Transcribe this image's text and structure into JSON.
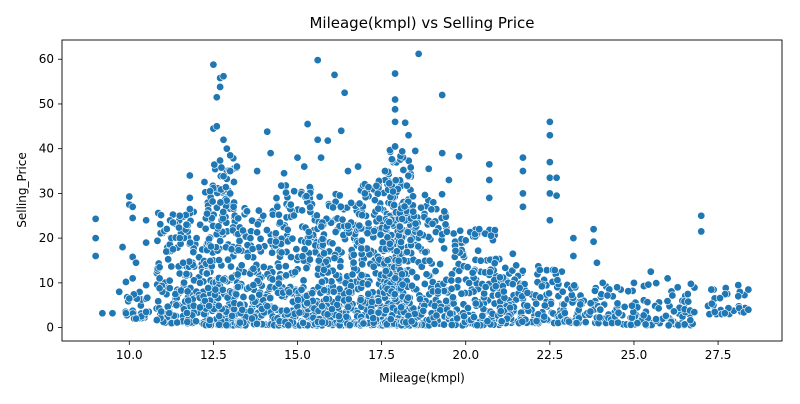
{
  "chart_data": {
    "type": "scatter",
    "title": "Mileage(kmpl) vs Selling Price",
    "xlabel": "Mileage(kmpl)",
    "ylabel": "Selling_Price",
    "xlim": [
      8.0,
      29.4
    ],
    "ylim": [
      -3.0,
      64.3
    ],
    "xticks": [
      10.0,
      12.5,
      15.0,
      17.5,
      20.0,
      22.5,
      25.0,
      27.5
    ],
    "yticks": [
      0,
      10,
      20,
      30,
      40,
      50,
      60
    ],
    "grid": false,
    "legend": "none",
    "marker_color": "#1f77b4",
    "marker_edge": "#ffffff",
    "points": [
      [
        9.0,
        24.3
      ],
      [
        9.0,
        20.0
      ],
      [
        9.0,
        16.0
      ],
      [
        9.2,
        3.2
      ],
      [
        9.5,
        3.2
      ],
      [
        9.7,
        8.0
      ],
      [
        9.8,
        18.0
      ],
      [
        9.9,
        10.2
      ],
      [
        9.9,
        3.2
      ],
      [
        10.0,
        29.3
      ],
      [
        10.0,
        27.5
      ],
      [
        10.0,
        6.5
      ],
      [
        10.1,
        15.8
      ],
      [
        10.1,
        11.0
      ],
      [
        10.1,
        27.0
      ],
      [
        10.1,
        24.5
      ],
      [
        10.2,
        14.5
      ],
      [
        10.2,
        2.0
      ],
      [
        10.5,
        24.0
      ],
      [
        10.5,
        19.0
      ],
      [
        10.5,
        9.5
      ],
      [
        10.5,
        3.5
      ],
      [
        10.9,
        8.8
      ],
      [
        10.9,
        11.0
      ],
      [
        10.9,
        13.5
      ],
      [
        11.1,
        17.0
      ],
      [
        11.2,
        10.5
      ],
      [
        11.3,
        17.5
      ],
      [
        11.3,
        23.5
      ],
      [
        11.4,
        5.0
      ],
      [
        11.5,
        25.0
      ],
      [
        11.5,
        20.0
      ],
      [
        11.6,
        14.5
      ],
      [
        11.7,
        12.0
      ],
      [
        11.7,
        23.0
      ],
      [
        11.8,
        29.0
      ],
      [
        11.8,
        34.0
      ],
      [
        11.8,
        26.5
      ],
      [
        12.0,
        20.0
      ],
      [
        12.1,
        10.0
      ],
      [
        12.1,
        4.5
      ],
      [
        12.4,
        30.5
      ],
      [
        12.5,
        44.5
      ],
      [
        12.5,
        58.8
      ],
      [
        12.6,
        51.5
      ],
      [
        12.6,
        45.0
      ],
      [
        12.7,
        55.8
      ],
      [
        12.7,
        53.8
      ],
      [
        12.8,
        56.2
      ],
      [
        12.8,
        42.0
      ],
      [
        12.9,
        40.0
      ],
      [
        13.0,
        35.0
      ],
      [
        13.0,
        38.5
      ],
      [
        13.0,
        30.0
      ],
      [
        13.1,
        27.0
      ],
      [
        13.2,
        36.0
      ],
      [
        13.5,
        26.0
      ],
      [
        13.6,
        20.0
      ],
      [
        13.8,
        35.0
      ],
      [
        14.1,
        43.8
      ],
      [
        14.2,
        39.0
      ],
      [
        14.4,
        27.0
      ],
      [
        14.6,
        34.5
      ],
      [
        14.8,
        27.5
      ],
      [
        14.9,
        30.5
      ],
      [
        15.0,
        38.0
      ],
      [
        15.2,
        36.0
      ],
      [
        15.3,
        45.5
      ],
      [
        15.6,
        59.8
      ],
      [
        15.7,
        38.0
      ],
      [
        15.6,
        42.0
      ],
      [
        15.9,
        41.8
      ],
      [
        16.1,
        56.5
      ],
      [
        16.4,
        52.5
      ],
      [
        16.3,
        44.0
      ],
      [
        16.5,
        35.0
      ],
      [
        16.8,
        36.0
      ],
      [
        17.0,
        30.0
      ],
      [
        17.3,
        28.5
      ],
      [
        17.6,
        35.0
      ],
      [
        17.9,
        56.8
      ],
      [
        17.9,
        51.0
      ],
      [
        17.9,
        48.8
      ],
      [
        17.9,
        46.0
      ],
      [
        17.9,
        40.5
      ],
      [
        18.2,
        45.8
      ],
      [
        18.3,
        43.0
      ],
      [
        18.5,
        39.5
      ],
      [
        18.6,
        61.2
      ],
      [
        18.9,
        35.5
      ],
      [
        19.3,
        52.0
      ],
      [
        19.3,
        39.0
      ],
      [
        19.5,
        33.0
      ],
      [
        19.8,
        38.3
      ],
      [
        20.0,
        19.5
      ],
      [
        20.4,
        22.0
      ],
      [
        20.7,
        36.5
      ],
      [
        20.7,
        33.0
      ],
      [
        20.7,
        29.0
      ],
      [
        21.4,
        16.5
      ],
      [
        21.7,
        38.0
      ],
      [
        21.7,
        35.0
      ],
      [
        21.7,
        30.0
      ],
      [
        21.7,
        27.0
      ],
      [
        22.5,
        46.0
      ],
      [
        22.5,
        43.0
      ],
      [
        22.5,
        37.0
      ],
      [
        22.5,
        33.5
      ],
      [
        22.5,
        30.0
      ],
      [
        22.7,
        33.5
      ],
      [
        22.7,
        29.5
      ],
      [
        22.5,
        24.0
      ],
      [
        23.2,
        20.0
      ],
      [
        23.2,
        16.0
      ],
      [
        23.8,
        22.0
      ],
      [
        23.8,
        19.2
      ],
      [
        23.9,
        14.5
      ],
      [
        24.0,
        4.0
      ],
      [
        24.5,
        9.0
      ],
      [
        25.0,
        10.0
      ],
      [
        25.5,
        12.5
      ],
      [
        26.0,
        11.0
      ],
      [
        26.3,
        9.0
      ],
      [
        26.6,
        7.5
      ],
      [
        27.0,
        25.0
      ],
      [
        27.0,
        21.5
      ],
      [
        27.3,
        8.5
      ],
      [
        27.4,
        3.5
      ],
      [
        27.7,
        3.2
      ],
      [
        28.1,
        9.5
      ],
      [
        28.1,
        7.0
      ],
      [
        28.4,
        8.5
      ],
      [
        28.4,
        4.0
      ]
    ],
    "clusters": [
      {
        "x": [
          9.8,
          10.6
        ],
        "y": [
          2.0,
          8.0
        ],
        "n": 30
      },
      {
        "x": [
          10.8,
          12.2
        ],
        "y": [
          1.0,
          26.0
        ],
        "n": 160
      },
      {
        "x": [
          12.2,
          13.2
        ],
        "y": [
          0.5,
          38.0
        ],
        "n": 240
      },
      {
        "x": [
          13.2,
          14.3
        ],
        "y": [
          0.5,
          28.0
        ],
        "n": 150
      },
      {
        "x": [
          14.3,
          15.6
        ],
        "y": [
          0.5,
          32.0
        ],
        "n": 230
      },
      {
        "x": [
          15.6,
          16.8
        ],
        "y": [
          0.5,
          30.0
        ],
        "n": 220
      },
      {
        "x": [
          16.8,
          18.0
        ],
        "y": [
          0.5,
          33.0
        ],
        "n": 260
      },
      {
        "x": [
          17.6,
          18.4
        ],
        "y": [
          0.5,
          40.0
        ],
        "n": 180
      },
      {
        "x": [
          18.0,
          19.5
        ],
        "y": [
          0.5,
          30.0
        ],
        "n": 200
      },
      {
        "x": [
          19.5,
          21.0
        ],
        "y": [
          0.5,
          22.0
        ],
        "n": 160
      },
      {
        "x": [
          21.0,
          22.9
        ],
        "y": [
          1.0,
          14.0
        ],
        "n": 150
      },
      {
        "x": [
          22.9,
          24.5
        ],
        "y": [
          1.0,
          10.0
        ],
        "n": 80
      },
      {
        "x": [
          24.5,
          26.8
        ],
        "y": [
          0.5,
          10.0
        ],
        "n": 90
      },
      {
        "x": [
          27.2,
          28.5
        ],
        "y": [
          3.0,
          9.5
        ],
        "n": 25
      }
    ]
  }
}
